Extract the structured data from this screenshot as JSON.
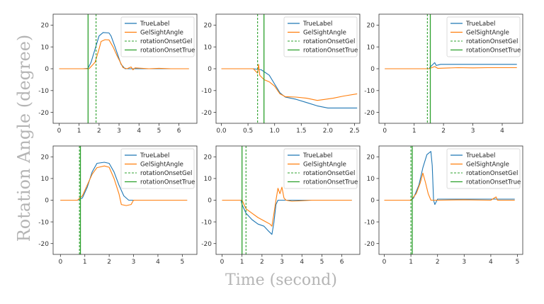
{
  "figure": {
    "ylabel": "Rotation Angle (degree)",
    "xlabel": "Time (second)"
  },
  "legend_labels": [
    "TrueLabel",
    "GelSightAngle",
    "rotationOnsetGel",
    "rotationOnsetTrue"
  ],
  "colors": {
    "true_label": "#1f77b4",
    "gelsight": "#ff7f0e",
    "onset_gel": "#2ca02c",
    "onset_true": "#2ca02c"
  },
  "chart_data": [
    {
      "type": "line",
      "xlim": [
        -0.3,
        6.9
      ],
      "ylim": [
        -25,
        25
      ],
      "xticks": [
        0,
        1,
        2,
        3,
        4,
        5,
        6
      ],
      "yticks": [
        -20,
        -10,
        0,
        10,
        20
      ],
      "legend_position": "top-right",
      "onset_gel": 1.85,
      "onset_true": 1.45,
      "series": [
        {
          "name": "TrueLabel",
          "points": [
            [
              0,
              0
            ],
            [
              1.2,
              0
            ],
            [
              1.45,
              0.2
            ],
            [
              1.6,
              3
            ],
            [
              1.8,
              9
            ],
            [
              2.0,
              15
            ],
            [
              2.2,
              16.6
            ],
            [
              2.5,
              16.4
            ],
            [
              2.6,
              15
            ],
            [
              2.8,
              10
            ],
            [
              3.1,
              2
            ],
            [
              3.3,
              0
            ],
            [
              4,
              0
            ],
            [
              5,
              0
            ],
            [
              6.5,
              0
            ]
          ]
        },
        {
          "name": "GelSightAngle",
          "points": [
            [
              0,
              0
            ],
            [
              1.2,
              0
            ],
            [
              1.5,
              0
            ],
            [
              1.8,
              3
            ],
            [
              2.0,
              9
            ],
            [
              2.1,
              12.5
            ],
            [
              2.3,
              13.3
            ],
            [
              2.5,
              13.2
            ],
            [
              2.7,
              10
            ],
            [
              2.9,
              6
            ],
            [
              3.2,
              0.5
            ],
            [
              3.4,
              0
            ],
            [
              3.6,
              0.8
            ],
            [
              3.7,
              -0.5
            ],
            [
              3.8,
              0.4
            ],
            [
              4.5,
              0
            ],
            [
              5,
              0.2
            ],
            [
              5.6,
              0
            ],
            [
              6.5,
              0
            ]
          ]
        }
      ]
    },
    {
      "type": "line",
      "xlim": [
        -0.1,
        2.6
      ],
      "ylim": [
        -25,
        25
      ],
      "xticks": [
        0.0,
        0.5,
        1.0,
        1.5,
        2.0,
        2.5
      ],
      "yticks": [
        -20,
        -10,
        0,
        10,
        20
      ],
      "legend_position": "top-right",
      "onset_gel": 0.68,
      "onset_true": 0.8,
      "series": [
        {
          "name": "TrueLabel",
          "points": [
            [
              0,
              0
            ],
            [
              0.6,
              0
            ],
            [
              0.75,
              -0.5
            ],
            [
              0.9,
              -3
            ],
            [
              1.0,
              -7
            ],
            [
              1.1,
              -11
            ],
            [
              1.2,
              -13
            ],
            [
              1.4,
              -14
            ],
            [
              1.6,
              -15.5
            ],
            [
              1.8,
              -17
            ],
            [
              2.0,
              -18
            ],
            [
              2.2,
              -18
            ],
            [
              2.55,
              -18
            ]
          ]
        },
        {
          "name": "GelSightAngle",
          "points": [
            [
              0,
              0
            ],
            [
              0.6,
              0
            ],
            [
              0.68,
              -2
            ],
            [
              0.7,
              2
            ],
            [
              0.72,
              -3
            ],
            [
              0.8,
              -5
            ],
            [
              0.9,
              -6
            ],
            [
              1.0,
              -8
            ],
            [
              1.1,
              -11.5
            ],
            [
              1.2,
              -12.8
            ],
            [
              1.4,
              -13
            ],
            [
              1.6,
              -13.5
            ],
            [
              1.8,
              -14.5
            ],
            [
              1.9,
              -14.2
            ],
            [
              2.1,
              -13.5
            ],
            [
              2.3,
              -12.5
            ],
            [
              2.55,
              -11.5
            ]
          ]
        }
      ]
    },
    {
      "type": "line",
      "xlim": [
        -0.2,
        4.7
      ],
      "ylim": [
        -25,
        25
      ],
      "xticks": [
        0,
        1,
        2,
        3,
        4
      ],
      "yticks": [
        -20,
        -10,
        0,
        10,
        20
      ],
      "legend_position": "top-right",
      "onset_gel": 1.45,
      "onset_true": 1.55,
      "series": [
        {
          "name": "TrueLabel",
          "points": [
            [
              0,
              0
            ],
            [
              1.5,
              0
            ],
            [
              1.6,
              1.5
            ],
            [
              1.7,
              2.8
            ],
            [
              1.75,
              1.5
            ],
            [
              1.9,
              2
            ],
            [
              2.5,
              2
            ],
            [
              3.5,
              2
            ],
            [
              4.5,
              2
            ]
          ]
        },
        {
          "name": "GelSightAngle",
          "points": [
            [
              0,
              0
            ],
            [
              1.5,
              0
            ],
            [
              1.6,
              0.5
            ],
            [
              1.7,
              1
            ],
            [
              1.8,
              0.2
            ],
            [
              2.5,
              0.5
            ],
            [
              3,
              0.4
            ],
            [
              3.5,
              0.5
            ],
            [
              4,
              0.5
            ],
            [
              4.5,
              0.5
            ]
          ]
        }
      ]
    },
    {
      "type": "line",
      "xlim": [
        -0.3,
        5.6
      ],
      "ylim": [
        -25,
        25
      ],
      "xticks": [
        0,
        1,
        2,
        3,
        4,
        5
      ],
      "yticks": [
        -20,
        -10,
        0,
        10,
        20
      ],
      "legend_position": "top-right",
      "onset_gel": 0.78,
      "onset_true": 0.82,
      "series": [
        {
          "name": "TrueLabel",
          "points": [
            [
              0,
              0
            ],
            [
              0.7,
              0
            ],
            [
              0.9,
              1
            ],
            [
              1.1,
              6
            ],
            [
              1.3,
              13
            ],
            [
              1.5,
              17
            ],
            [
              1.8,
              17.5
            ],
            [
              2.0,
              17
            ],
            [
              2.2,
              13
            ],
            [
              2.4,
              7
            ],
            [
              2.6,
              2
            ],
            [
              2.8,
              0
            ],
            [
              3.5,
              0
            ],
            [
              5.2,
              0
            ]
          ]
        },
        {
          "name": "GelSightAngle",
          "points": [
            [
              0,
              0
            ],
            [
              0.7,
              0
            ],
            [
              0.9,
              2
            ],
            [
              1.1,
              7
            ],
            [
              1.3,
              12
            ],
            [
              1.5,
              15
            ],
            [
              1.8,
              15.8
            ],
            [
              2.0,
              15.2
            ],
            [
              2.2,
              10
            ],
            [
              2.4,
              3
            ],
            [
              2.5,
              -2
            ],
            [
              2.7,
              -2.5
            ],
            [
              2.9,
              -2
            ],
            [
              3.0,
              0
            ],
            [
              3.5,
              0
            ],
            [
              4,
              0
            ],
            [
              5.2,
              0
            ]
          ]
        }
      ]
    },
    {
      "type": "line",
      "xlim": [
        -0.3,
        6.9
      ],
      "ylim": [
        -25,
        25
      ],
      "xticks": [
        0,
        1,
        2,
        3,
        4,
        5,
        6
      ],
      "yticks": [
        -20,
        -10,
        0,
        10,
        20
      ],
      "legend_position": "top-right",
      "onset_gel": 1.2,
      "onset_true": 1.0,
      "series": [
        {
          "name": "TrueLabel",
          "points": [
            [
              0,
              0
            ],
            [
              0.95,
              0
            ],
            [
              1.0,
              -2
            ],
            [
              1.2,
              -6
            ],
            [
              1.5,
              -9
            ],
            [
              1.8,
              -11
            ],
            [
              2.1,
              -12
            ],
            [
              2.3,
              -14
            ],
            [
              2.5,
              -15.8
            ],
            [
              2.6,
              -10
            ],
            [
              2.7,
              -2
            ],
            [
              2.8,
              0
            ],
            [
              3.5,
              0
            ],
            [
              4.5,
              0
            ],
            [
              6.5,
              0
            ]
          ]
        },
        {
          "name": "GelSightAngle",
          "points": [
            [
              0,
              0
            ],
            [
              1.0,
              0
            ],
            [
              1.2,
              -4
            ],
            [
              1.5,
              -6
            ],
            [
              1.8,
              -8
            ],
            [
              2.1,
              -9.5
            ],
            [
              2.4,
              -11
            ],
            [
              2.5,
              -12
            ],
            [
              2.6,
              -6
            ],
            [
              2.7,
              0
            ],
            [
              2.8,
              5.5
            ],
            [
              2.9,
              3
            ],
            [
              3.0,
              6
            ],
            [
              3.1,
              1
            ],
            [
              3.2,
              0
            ],
            [
              3.5,
              -0.5
            ],
            [
              4.5,
              0
            ],
            [
              6.5,
              0
            ]
          ]
        }
      ]
    },
    {
      "type": "line",
      "xlim": [
        -0.2,
        5.2
      ],
      "ylim": [
        -25,
        25
      ],
      "xticks": [
        0,
        1,
        2,
        3,
        4,
        5
      ],
      "yticks": [
        -20,
        -10,
        0,
        10,
        20
      ],
      "legend_position": "top-right",
      "onset_gel": 1.0,
      "onset_true": 1.05,
      "series": [
        {
          "name": "TrueLabel",
          "points": [
            [
              0,
              0
            ],
            [
              1.0,
              0
            ],
            [
              1.1,
              1
            ],
            [
              1.3,
              7
            ],
            [
              1.45,
              15
            ],
            [
              1.6,
              21
            ],
            [
              1.75,
              22.5
            ],
            [
              1.8,
              16
            ],
            [
              1.85,
              0
            ],
            [
              1.9,
              -2
            ],
            [
              2.0,
              0.5
            ],
            [
              2.5,
              0.5
            ],
            [
              3.5,
              0.5
            ],
            [
              4,
              0.5
            ],
            [
              4.9,
              0.5
            ]
          ]
        },
        {
          "name": "GelSightAngle",
          "points": [
            [
              0,
              0
            ],
            [
              1.0,
              0
            ],
            [
              1.2,
              3
            ],
            [
              1.35,
              8
            ],
            [
              1.45,
              12.5
            ],
            [
              1.55,
              8
            ],
            [
              1.65,
              3
            ],
            [
              1.75,
              0
            ],
            [
              1.85,
              0
            ],
            [
              2.0,
              0
            ],
            [
              3.0,
              0.2
            ],
            [
              4.0,
              0
            ],
            [
              4.2,
              1.5
            ],
            [
              4.25,
              0
            ],
            [
              4.9,
              0
            ]
          ]
        }
      ]
    }
  ]
}
